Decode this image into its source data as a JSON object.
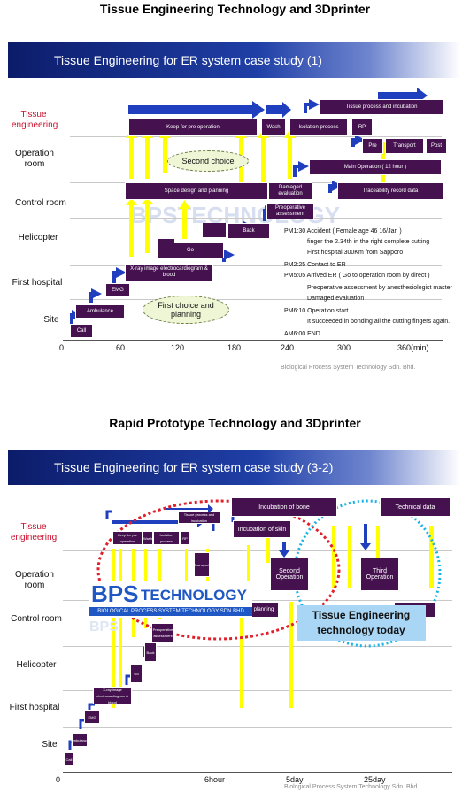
{
  "titles": {
    "top": "Tissue Engineering Technology and 3Dprinter",
    "bottom": "Rapid Prototype Technology and 3Dprinter"
  },
  "panel1": {
    "banner": "Tissue Engineering for ER system case study (1)",
    "rows": [
      "Tissue engineering",
      "Operation room",
      "Control room",
      "Helicopter",
      "First hospital",
      "Site"
    ],
    "boxes": {
      "keep": "Keep for pre operation",
      "wash": "Wash",
      "isolation": "Isolation process",
      "rp": "RP",
      "tpi": "Tissue process and incubation",
      "pre": "Pre",
      "transport": "Transport",
      "post": "Post",
      "mainop": "Main Operation ( 12 hour )",
      "space": "Space design and planning",
      "damaged": "Damaged evaluation",
      "trace": "Traceability record data",
      "preop": "Preoperative assessment",
      "back": "Back",
      "go": "Go",
      "xray": "X-ray image electrocardiogram & blood",
      "emg": "EMG",
      "ambulance": "Ambulance",
      "call": "Call"
    },
    "clouds": {
      "second": "Second choice",
      "first": "First choice and planning"
    },
    "notes": [
      "PM1:30 Accident ( Female age 46 16/Jan )",
      "finger the 2.34th in the right complete cutting",
      "First hospital 300Km from Sapporo",
      "PM2:25 Contact to ER",
      "PM5:05 Arrived ER ( Go to operation room by direct )",
      "Preoperative assessment by anesthesiologist master",
      "Damaged evaluation",
      "PM6:10 Operation start",
      "It succeeded in bonding all the cutting fingers again.",
      "AM6:00 END"
    ],
    "ticks": [
      "0",
      "60",
      "120",
      "180",
      "240",
      "300",
      "360(min)"
    ],
    "footer": "Biological Process System Technology Sdn. Bhd.",
    "watermark": "BPSTECHNOLOGY"
  },
  "panel2": {
    "banner": "Tissue Engineering for ER system case study (3-2)",
    "rows": [
      "Tissue engineering",
      "Operation room",
      "Control room",
      "Helicopter",
      "First hospital",
      "Site"
    ],
    "boxes": {
      "keep": "Keep for pre operation",
      "wash": "Wash",
      "isolation": "Isolation process",
      "rp": "RP",
      "tpi": "Tissue process and incubation",
      "incbone": "Incubation of bone",
      "incskin": "Incubation of skin",
      "technical": "Technical data",
      "second": "Second Operation",
      "third": "Third Operation",
      "planning": "planning",
      "second_short": "econd",
      "transport": "Transport",
      "preop": "Preoperative assessment",
      "back": "Back",
      "go": "Go",
      "xray": "X-ray image electrocardiogram & blood",
      "emg": "EMG",
      "ambulance": "Ambulance",
      "call": "Call"
    },
    "logo_main": "BPS",
    "logo_tech": "TECHNOLOGY",
    "logo_sub": "BIOLOGICAL PROCESS SYSTEM TECHNOLOGY SDN BHD",
    "highlight": "Tissue Engineering technology today",
    "ticks": [
      "0",
      "6hour",
      "5day",
      "25day"
    ],
    "footer": "Biological Process System Technology Sdn. Bhd."
  },
  "colors": {
    "box": "#45124f",
    "arrow_blue": "#1f3fbf",
    "arrow_yellow": "#ffff00",
    "tissue_label": "#c8102e",
    "circle_red": "#e0202a",
    "circle_cyan": "#1ab3e6",
    "highlight_bg": "#a9d6f5"
  }
}
